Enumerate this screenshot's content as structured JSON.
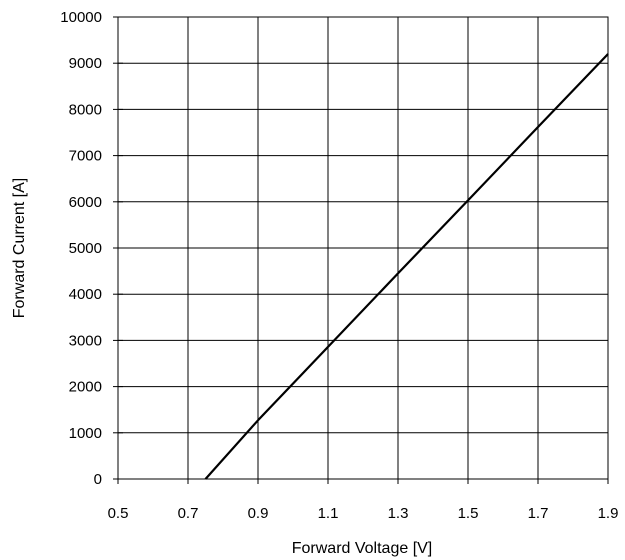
{
  "chart_data": {
    "type": "line",
    "title": "",
    "xlabel": "Forward Voltage [V]",
    "ylabel": "Forward Current [A]",
    "xlim": [
      0.5,
      1.9
    ],
    "ylim": [
      0,
      10000
    ],
    "x_ticks": [
      "0.5",
      "0.7",
      "0.9",
      "1.1",
      "1.3",
      "1.5",
      "1.7",
      "1.9"
    ],
    "y_ticks": [
      "0",
      "1000",
      "2000",
      "3000",
      "4000",
      "5000",
      "6000",
      "7000",
      "8000",
      "9000",
      "10000"
    ],
    "grid": true,
    "legend": "none",
    "line_color": "#000000",
    "series": [
      {
        "x": [
          0.75,
          0.9,
          1.1,
          1.3,
          1.5,
          1.7,
          1.9
        ],
        "y": [
          0,
          1270,
          2860,
          4450,
          6030,
          7620,
          9200
        ]
      }
    ]
  }
}
